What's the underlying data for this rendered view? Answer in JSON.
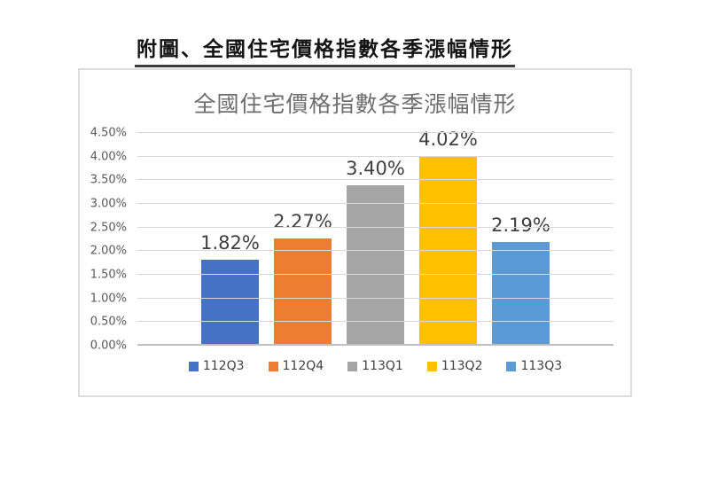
{
  "page": {
    "heading": "附圖、全國住宅價格指數各季漲幅情形"
  },
  "chart_data": {
    "type": "bar",
    "title": "全國住宅價格指數各季漲幅情形",
    "categories": [
      "112Q3",
      "112Q4",
      "113Q1",
      "113Q2",
      "113Q3"
    ],
    "series": [
      {
        "name": "112Q3",
        "value": 1.82,
        "label": "1.82%",
        "color": "#4472C4"
      },
      {
        "name": "112Q4",
        "value": 2.27,
        "label": "2.27%",
        "color": "#ED7D31"
      },
      {
        "name": "113Q1",
        "value": 3.4,
        "label": "3.40%",
        "color": "#A5A5A5"
      },
      {
        "name": "113Q2",
        "value": 4.02,
        "label": "4.02%",
        "color": "#FFC000"
      },
      {
        "name": "113Q3",
        "value": 2.19,
        "label": "2.19%",
        "color": "#5B9BD5"
      }
    ],
    "xlabel": "",
    "ylabel": "",
    "ylim": [
      0,
      4.5
    ],
    "ytick_step": 0.5,
    "yticks": [
      "0.00%",
      "0.50%",
      "1.00%",
      "1.50%",
      "2.00%",
      "2.50%",
      "3.00%",
      "3.50%",
      "4.00%",
      "4.50%"
    ],
    "grid": true,
    "legend_position": "bottom",
    "colors": {
      "gridline": "#D9D9D9",
      "axis_line": "#BFBFBF",
      "chart_border": "#DCDCDC",
      "title_text": "#6D6D6D",
      "tick_text": "#595959",
      "data_label_text": "#3F3F3F",
      "legend_text": "#404040",
      "heading_text": "#141414"
    }
  }
}
